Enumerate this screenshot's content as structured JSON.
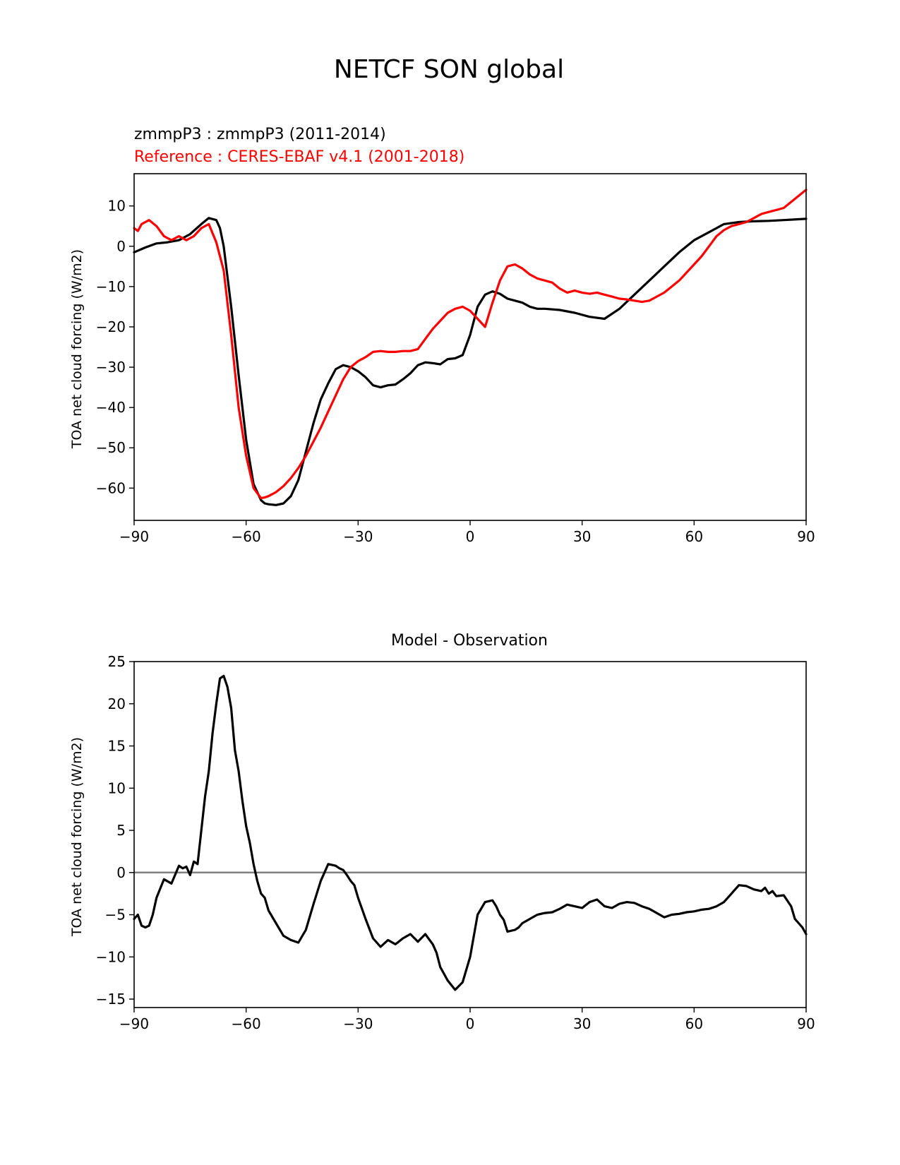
{
  "figure": {
    "title": "NETCF SON global"
  },
  "chart_data": [
    {
      "type": "line",
      "test_label": "zmmpP3 : zmmpP3 (2011-2014)",
      "reference_label": "Reference : CERES-EBAF v4.1 (2001-2018)",
      "ylabel": "TOA net cloud forcing (W/m2)",
      "xlim": [
        -90,
        90
      ],
      "ylim": [
        -68,
        18
      ],
      "xticks": [
        -90,
        -60,
        -30,
        0,
        30,
        60,
        90
      ],
      "xtick_labels": [
        "−90",
        "−60",
        "−30",
        "0",
        "30",
        "60",
        "90"
      ],
      "yticks": [
        -60,
        -50,
        -40,
        -30,
        -20,
        -10,
        0,
        10
      ],
      "ytick_labels": [
        "−60",
        "−50",
        "−40",
        "−30",
        "−20",
        "−10",
        "0",
        "10"
      ],
      "grid": false,
      "series": [
        {
          "color": "#000000",
          "x": [
            -90,
            -87,
            -84,
            -81,
            -78,
            -75,
            -72,
            -70,
            -68,
            -67,
            -66,
            -64,
            -62,
            -60,
            -58,
            -56,
            -55,
            -54,
            -52,
            -50,
            -48,
            -46,
            -44,
            -42,
            -40,
            -38,
            -36,
            -34,
            -32,
            -30,
            -28,
            -26,
            -24,
            -22,
            -20,
            -18,
            -16,
            -14,
            -12,
            -10,
            -8,
            -6,
            -4,
            -2,
            0,
            2,
            4,
            6,
            8,
            10,
            12,
            14,
            16,
            18,
            20,
            24,
            28,
            32,
            36,
            40,
            44,
            48,
            52,
            56,
            60,
            64,
            68,
            72,
            76,
            80,
            84,
            88,
            90
          ],
          "y": [
            -1.5,
            -0.3,
            0.7,
            1.0,
            1.5,
            3.0,
            5.5,
            7.0,
            6.5,
            4.5,
            0.0,
            -15.0,
            -32.0,
            -48.0,
            -59.0,
            -63.0,
            -63.8,
            -64.0,
            -64.2,
            -63.8,
            -62.0,
            -58.0,
            -51.0,
            -44.0,
            -38.0,
            -34.0,
            -30.5,
            -29.5,
            -30.0,
            -31.0,
            -32.5,
            -34.5,
            -35.0,
            -34.5,
            -34.3,
            -33.0,
            -31.5,
            -29.5,
            -28.8,
            -29.0,
            -29.3,
            -28.0,
            -27.8,
            -27.0,
            -22.0,
            -15.0,
            -12.0,
            -11.2,
            -11.8,
            -13.0,
            -13.5,
            -14.0,
            -15.0,
            -15.5,
            -15.5,
            -15.8,
            -16.5,
            -17.5,
            -18.0,
            -15.5,
            -12.0,
            -8.5,
            -5.0,
            -1.5,
            1.5,
            3.5,
            5.5,
            6.0,
            6.2,
            6.3,
            6.5,
            6.7,
            6.8
          ]
        },
        {
          "color": "#ff0000",
          "x": [
            -90,
            -89,
            -88,
            -86,
            -84,
            -82,
            -80,
            -78,
            -76,
            -74,
            -72,
            -70,
            -68,
            -66,
            -64,
            -62,
            -60,
            -58,
            -56,
            -55,
            -54,
            -52,
            -50,
            -48,
            -46,
            -44,
            -42,
            -40,
            -38,
            -36,
            -34,
            -32,
            -30,
            -28,
            -26,
            -24,
            -22,
            -20,
            -18,
            -16,
            -14,
            -12,
            -10,
            -8,
            -6,
            -4,
            -2,
            0,
            2,
            4,
            6,
            8,
            10,
            12,
            14,
            16,
            18,
            20,
            22,
            24,
            26,
            28,
            30,
            32,
            34,
            36,
            38,
            40,
            42,
            44,
            46,
            48,
            50,
            52,
            54,
            56,
            58,
            60,
            62,
            64,
            66,
            68,
            70,
            72,
            74,
            76,
            78,
            80,
            82,
            84,
            86,
            88,
            90
          ],
          "y": [
            4.5,
            3.8,
            5.5,
            6.5,
            5.0,
            2.5,
            1.5,
            2.5,
            1.5,
            2.5,
            4.5,
            5.5,
            1.0,
            -6.0,
            -22.0,
            -40.0,
            -52.0,
            -60.0,
            -62.5,
            -62.3,
            -62.0,
            -61.0,
            -59.5,
            -57.5,
            -55.0,
            -52.0,
            -48.5,
            -45.0,
            -41.0,
            -37.0,
            -33.0,
            -30.0,
            -28.5,
            -27.5,
            -26.2,
            -26.0,
            -26.2,
            -26.2,
            -26.0,
            -26.0,
            -25.5,
            -23.0,
            -20.5,
            -18.5,
            -16.5,
            -15.5,
            -15.0,
            -16.0,
            -18.0,
            -20.0,
            -14.0,
            -8.5,
            -5.0,
            -4.5,
            -5.5,
            -7.0,
            -8.0,
            -8.5,
            -9.0,
            -10.5,
            -11.5,
            -11.0,
            -11.5,
            -11.8,
            -11.5,
            -12.0,
            -12.5,
            -13.0,
            -13.2,
            -13.5,
            -13.8,
            -13.5,
            -12.5,
            -11.5,
            -10.0,
            -8.5,
            -6.5,
            -4.5,
            -2.5,
            0.0,
            2.5,
            4.0,
            5.0,
            5.5,
            6.0,
            7.0,
            8.0,
            8.5,
            9.0,
            9.5,
            11.0,
            12.5,
            14.0
          ]
        }
      ]
    },
    {
      "type": "line",
      "title": "Model - Observation",
      "ylabel": "TOA net cloud forcing (W/m2)",
      "xlim": [
        -90,
        90
      ],
      "ylim": [
        -16,
        25
      ],
      "xticks": [
        -90,
        -60,
        -30,
        0,
        30,
        60,
        90
      ],
      "xtick_labels": [
        "−90",
        "−60",
        "−30",
        "0",
        "30",
        "60",
        "90"
      ],
      "yticks": [
        -15,
        -10,
        -5,
        0,
        5,
        10,
        15,
        20,
        25
      ],
      "ytick_labels": [
        "−15",
        "−10",
        "−5",
        "0",
        "5",
        "10",
        "15",
        "20",
        "25"
      ],
      "grid": false,
      "zero_line": {
        "y": 0,
        "color": "#808080"
      },
      "series": [
        {
          "color": "#000000",
          "x": [
            -90,
            -89,
            -88,
            -87,
            -86,
            -85,
            -84,
            -82,
            -80,
            -78,
            -77,
            -76,
            -75,
            -74,
            -73,
            -72,
            -71,
            -70,
            -69,
            -68,
            -67,
            -66,
            -65,
            -64,
            -63,
            -62,
            -61,
            -60,
            -59,
            -58,
            -57,
            -56,
            -55,
            -54,
            -52,
            -50,
            -48,
            -46,
            -44,
            -42,
            -40,
            -38,
            -36,
            -35,
            -34,
            -33,
            -32,
            -31,
            -30,
            -28,
            -26,
            -24,
            -22,
            -20,
            -18,
            -16,
            -14,
            -12,
            -10,
            -9,
            -8,
            -6,
            -4,
            -2,
            -1,
            0,
            1,
            2,
            4,
            6,
            7,
            8,
            9,
            10,
            12,
            13,
            14,
            16,
            18,
            20,
            22,
            24,
            26,
            27,
            28,
            30,
            32,
            34,
            36,
            38,
            40,
            42,
            44,
            46,
            48,
            50,
            52,
            54,
            56,
            58,
            60,
            62,
            64,
            66,
            68,
            70,
            72,
            74,
            76,
            78,
            79,
            80,
            81,
            82,
            84,
            86,
            87,
            88,
            89,
            90
          ],
          "y": [
            -5.5,
            -5.0,
            -6.3,
            -6.5,
            -6.3,
            -5.0,
            -3.0,
            -0.8,
            -1.3,
            0.8,
            0.5,
            0.7,
            -0.3,
            1.3,
            1.0,
            5.0,
            9.0,
            12.0,
            16.5,
            20.0,
            23.0,
            23.3,
            22.0,
            19.5,
            14.5,
            12.0,
            8.5,
            5.5,
            3.5,
            1.0,
            -1.0,
            -2.5,
            -3.0,
            -4.5,
            -6.0,
            -7.5,
            -8.0,
            -8.3,
            -6.8,
            -3.8,
            -1.0,
            1.0,
            0.8,
            0.5,
            0.3,
            -0.3,
            -1.0,
            -1.5,
            -3.0,
            -5.5,
            -7.8,
            -8.8,
            -8.0,
            -8.5,
            -7.8,
            -7.3,
            -8.2,
            -7.3,
            -8.5,
            -9.5,
            -11.2,
            -12.8,
            -13.9,
            -13.0,
            -11.5,
            -10.0,
            -7.5,
            -5.0,
            -3.5,
            -3.3,
            -4.0,
            -5.0,
            -5.6,
            -7.0,
            -6.8,
            -6.5,
            -6.0,
            -5.5,
            -5.0,
            -4.8,
            -4.7,
            -4.3,
            -3.8,
            -3.9,
            -4.0,
            -4.2,
            -3.5,
            -3.2,
            -4.0,
            -4.2,
            -3.7,
            -3.5,
            -3.6,
            -4.0,
            -4.3,
            -4.8,
            -5.3,
            -5.0,
            -4.9,
            -4.7,
            -4.6,
            -4.4,
            -4.3,
            -4.0,
            -3.5,
            -2.5,
            -1.5,
            -1.6,
            -2.0,
            -2.2,
            -1.8,
            -2.5,
            -2.2,
            -2.8,
            -2.7,
            -4.0,
            -5.5,
            -6.0,
            -6.5,
            -7.3
          ]
        }
      ]
    }
  ]
}
